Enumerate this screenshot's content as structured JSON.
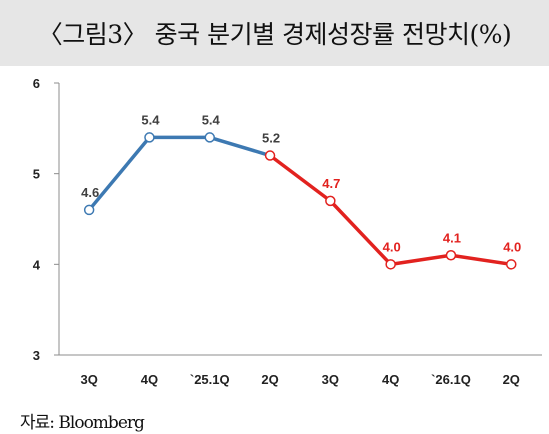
{
  "title": "〈그림3〉 중국 분기별 경제성장률 전망치(%)",
  "source": "자료: Bloomberg",
  "chart_data": {
    "type": "line",
    "categories": [
      "3Q",
      "4Q",
      "`25.1Q",
      "2Q",
      "3Q",
      "4Q",
      "`26.1Q",
      "2Q"
    ],
    "values": [
      4.6,
      5.4,
      5.4,
      5.2,
      4.7,
      4.0,
      4.1,
      4.0
    ],
    "value_labels": [
      "4.6",
      "5.4",
      "5.4",
      "5.2",
      "4.7",
      "4.0",
      "4.1",
      "4.0"
    ],
    "actual_count": 4,
    "ylim": [
      3,
      6
    ],
    "yticks": [
      "3",
      "4",
      "5",
      "6"
    ],
    "grid": false,
    "colors": {
      "actual": "#3d79b2",
      "forecast": "#e2221f",
      "actual_label": "#404040",
      "forecast_label": "#e2221f"
    }
  }
}
